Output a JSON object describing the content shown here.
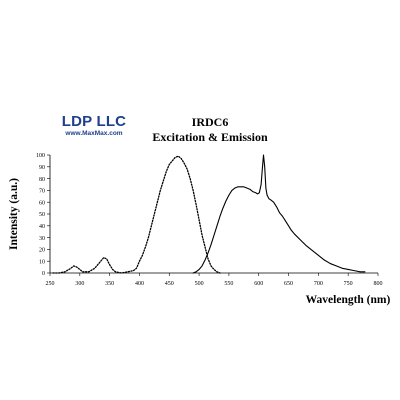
{
  "logo": {
    "name": "LDP LLC",
    "url": "www.MaxMax.com"
  },
  "chart_data": {
    "type": "line",
    "title": "IRDC6",
    "subtitle": "Excitation & Emission",
    "xlabel": "Wavelength (nm)",
    "ylabel": "Intensity (a.u.)",
    "xlim": [
      250,
      800
    ],
    "ylim": [
      0,
      100
    ],
    "xticks": [
      250,
      300,
      350,
      400,
      450,
      500,
      550,
      600,
      650,
      700,
      750,
      800
    ],
    "yticks": [
      0,
      10,
      20,
      30,
      40,
      50,
      60,
      70,
      80,
      90,
      100
    ],
    "grid": false,
    "legend": "none",
    "series": [
      {
        "style": "dotted",
        "color": "#000000",
        "x": [
          255,
          265,
          275,
          285,
          290,
          295,
          300,
          305,
          315,
          325,
          335,
          340,
          345,
          350,
          355,
          360,
          370,
          380,
          390,
          395,
          400,
          405,
          410,
          415,
          420,
          425,
          430,
          435,
          440,
          445,
          450,
          455,
          460,
          465,
          470,
          475,
          480,
          485,
          490,
          495,
          500,
          505,
          510,
          515,
          520,
          525,
          530,
          535
        ],
        "y": [
          0,
          0,
          1,
          4,
          6,
          5,
          3,
          1,
          1,
          4,
          10,
          13,
          12,
          7,
          3,
          1,
          0,
          1,
          2,
          4,
          10,
          15,
          22,
          30,
          40,
          50,
          60,
          70,
          78,
          86,
          92,
          95,
          98,
          99,
          97,
          93,
          88,
          80,
          70,
          58,
          45,
          32,
          22,
          12,
          6,
          3,
          1,
          0
        ]
      },
      {
        "style": "solid",
        "color": "#000000",
        "x": [
          490,
          495,
          500,
          505,
          510,
          515,
          520,
          525,
          530,
          535,
          540,
          545,
          550,
          555,
          560,
          565,
          570,
          575,
          580,
          585,
          590,
          595,
          598,
          601,
          604,
          606,
          608,
          610,
          612,
          614,
          617,
          620,
          625,
          630,
          635,
          640,
          645,
          650,
          655,
          660,
          670,
          680,
          690,
          700,
          710,
          720,
          730,
          740,
          750,
          760,
          770,
          778
        ],
        "y": [
          0,
          1,
          3,
          6,
          11,
          17,
          24,
          32,
          40,
          48,
          55,
          61,
          66,
          70,
          72,
          73,
          73,
          73,
          72,
          71,
          69,
          68,
          67,
          68,
          75,
          88,
          100,
          90,
          72,
          66,
          63,
          62,
          60,
          56,
          51,
          48,
          44,
          40,
          36,
          33,
          28,
          23,
          19,
          15,
          11,
          8,
          6,
          4,
          3,
          2,
          1,
          1
        ]
      }
    ]
  }
}
